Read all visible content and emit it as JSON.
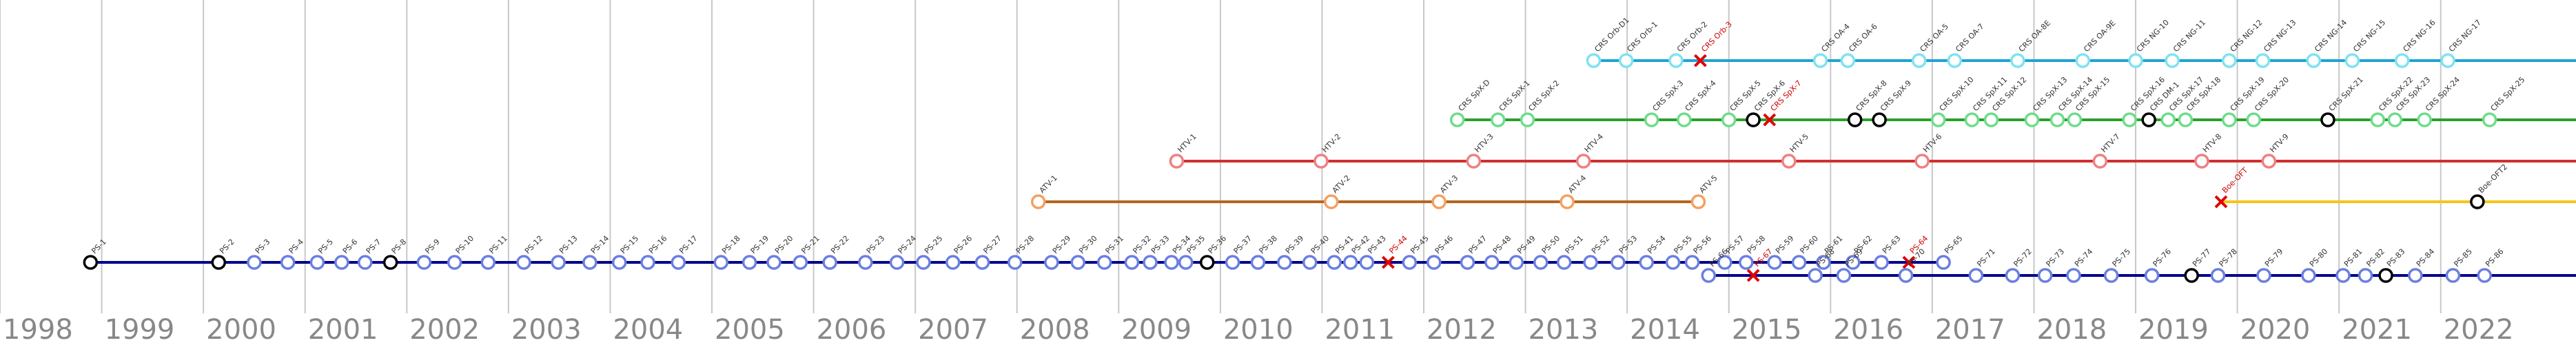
{
  "chart_data": {
    "type": "timeline",
    "xlim": [
      1998,
      2023.33
    ],
    "xticks": [
      1998,
      1999,
      2000,
      2001,
      2002,
      2003,
      2004,
      2005,
      2006,
      2007,
      2008,
      2009,
      2010,
      2011,
      2012,
      2013,
      2014,
      2015,
      2016,
      2017,
      2018,
      2019,
      2020,
      2021,
      2022
    ],
    "grid": true,
    "series": [
      {
        "color": "#1fa3d4",
        "point_color": "#7fe3f0",
        "extend": true,
        "x": [
          2013.67,
          2013.99,
          2014.48,
          2014.72,
          2015.9,
          2016.17,
          2016.87,
          2017.22,
          2017.84,
          2018.48,
          2019.0,
          2019.36,
          2019.92,
          2020.25,
          2020.75,
          2021.13,
          2021.62,
          2022.07
        ],
        "labels": [
          "CRS Orb-D1",
          "CRS Orb-1",
          "CRS Orb-2",
          "CRS Orb-3",
          "CRS OA-4",
          "CRS OA-6",
          "CRS OA-5",
          "CRS OA-7",
          "CRS OA-8E",
          "CRS OA-9E",
          "CRS NG-10",
          "CRS NG-11",
          "CRS NG-12",
          "CRS NG-13",
          "CRS NG-14",
          "CRS NG-15",
          "CRS NG-16",
          "CRS NG-17"
        ],
        "markers": [
          "o",
          "o",
          "o",
          "x",
          "o",
          "o",
          "o",
          "o",
          "o",
          "o",
          "o",
          "o",
          "o",
          "o",
          "o",
          "o",
          "o",
          "o"
        ]
      },
      {
        "color": "#2ca02c",
        "point_color": "#6fdc8c",
        "extend": true,
        "x": [
          2012.33,
          2012.73,
          2013.02,
          2014.24,
          2014.56,
          2015.0,
          2015.24,
          2015.4,
          2016.24,
          2016.48,
          2017.06,
          2017.39,
          2017.58,
          2017.98,
          2018.23,
          2018.4,
          2018.94,
          2019.13,
          2019.32,
          2019.49,
          2019.92,
          2020.16,
          2020.89,
          2021.38,
          2021.55,
          2021.84,
          2022.48
        ],
        "labels": [
          "CRS SpX-D",
          "CRS SpX-1",
          "CRS SpX-2",
          "CRS SpX-3",
          "CRS SpX-4",
          "CRS SpX-5",
          "CRS SpX-6",
          "CRS SpX-7",
          "CRS SpX-8",
          "CRS SpX-9",
          "CRS SpX-10",
          "CRS SpX-11",
          "CRS SpX-12",
          "CRS SpX-13",
          "CRS SpX-14",
          "CRS SpX-15",
          "CRS SpX-16",
          "CRS DM-1",
          "CRS SpX-17",
          "CRS SpX-18",
          "CRS SpX-19",
          "CRS SpX-20",
          "CRS SpX-21",
          "CRS SpX-22",
          "CRS SpX-23",
          "CRS SpX-24",
          "CRS SpX-25"
        ],
        "markers": [
          "o",
          "o",
          "o",
          "o",
          "o",
          "o",
          "b",
          "x",
          "b",
          "b",
          "o",
          "o",
          "o",
          "o",
          "o",
          "o",
          "o",
          "b",
          "o",
          "o",
          "o",
          "o",
          "b",
          "o",
          "o",
          "o",
          "o"
        ]
      },
      {
        "color": "#d03030",
        "point_color": "#f08080",
        "extend": true,
        "x": [
          2009.57,
          2010.99,
          2012.49,
          2013.57,
          2015.59,
          2016.9,
          2018.65,
          2019.65,
          2020.31
        ],
        "labels": [
          "HTV-1",
          "HTV-2",
          "HTV-3",
          "HTV-4",
          "HTV-5",
          "HTV-6",
          "HTV-7",
          "HTV-8",
          "HTV-9"
        ],
        "markers": [
          "o",
          "o",
          "o",
          "o",
          "o",
          "o",
          "o",
          "o",
          "o"
        ]
      },
      {
        "color": "#b5651d",
        "point_color": "#f4a060",
        "extend": false,
        "x": [
          2008.21,
          2011.09,
          2012.15,
          2013.41,
          2014.7
        ],
        "labels": [
          "ATV-1",
          "ATV-2",
          "ATV-3",
          "ATV-4",
          "ATV-5"
        ],
        "markers": [
          "o",
          "o",
          "o",
          "o",
          "o"
        ]
      },
      {
        "color": "#f5c518",
        "point_color": "#f5c518",
        "extend": true,
        "x": [
          2019.84,
          2022.36
        ],
        "labels": [
          "Boe-OFT",
          "Boe-OFT2"
        ],
        "markers": [
          "x",
          "b"
        ]
      },
      {
        "color": "#00008b",
        "point_color": "#6a7fe0",
        "extend": false,
        "x": [
          1998.89,
          2000.15,
          2000.5,
          2000.83,
          2001.12,
          2001.36,
          2001.59,
          2001.84,
          2002.17,
          2002.47,
          2002.8,
          2003.15,
          2003.49,
          2003.8,
          2004.09,
          2004.37,
          2004.67,
          2005.09,
          2005.37,
          2005.61,
          2005.87,
          2006.16,
          2006.51,
          2006.82,
          2007.08,
          2007.37,
          2007.66,
          2007.98,
          2008.34,
          2008.6,
          2008.86,
          2009.13,
          2009.31,
          2009.52,
          2009.66,
          2009.87,
          2010.12,
          2010.37,
          2010.63,
          2010.88,
          2011.12,
          2011.28,
          2011.44,
          2011.65,
          2011.86,
          2012.1,
          2012.43,
          2012.67,
          2012.91,
          2013.15,
          2013.38,
          2013.64,
          2013.91,
          2014.19,
          2014.45,
          2014.64,
          2014.96,
          2015.17,
          2015.45,
          2015.69,
          2015.93,
          2016.22,
          2016.5,
          2016.77,
          2017.11
        ],
        "labels": [
          "PS-1",
          "PS-2",
          "PS-3",
          "PS-4",
          "PS-5",
          "PS-6",
          "PS-7",
          "PS-8",
          "PS-9",
          "PS-10",
          "PS-11",
          "PS-12",
          "PS-13",
          "PS-14",
          "PS-15",
          "PS-16",
          "PS-17",
          "PS-18",
          "PS-19",
          "PS-20",
          "PS-21",
          "PS-22",
          "PS-23",
          "PS-24",
          "PS-25",
          "PS-26",
          "PS-27",
          "PS-28",
          "PS-29",
          "PS-30",
          "PS-31",
          "PS-32",
          "PS-33",
          "PS-34",
          "PS-35",
          "PS-36",
          "PS-37",
          "PS-38",
          "PS-39",
          "PS-40",
          "PS-41",
          "PS-42",
          "PS-43",
          "PS-44",
          "PS-45",
          "PS-46",
          "PS-47",
          "PS-48",
          "PS-49",
          "PS-50",
          "PS-51",
          "PS-52",
          "PS-53",
          "PS-54",
          "PS-55",
          "PS-56",
          "PS-57",
          "PS-58",
          "PS-59",
          "PS-60",
          "PS-61",
          "PS-62",
          "PS-63",
          "PS-64",
          "PS-65"
        ],
        "markers": [
          "b",
          "b",
          "o",
          "o",
          "o",
          "o",
          "o",
          "b",
          "o",
          "o",
          "o",
          "o",
          "o",
          "o",
          "o",
          "o",
          "o",
          "o",
          "o",
          "o",
          "o",
          "o",
          "o",
          "o",
          "o",
          "o",
          "o",
          "o",
          "o",
          "o",
          "o",
          "o",
          "o",
          "o",
          "o",
          "b",
          "o",
          "o",
          "o",
          "o",
          "o",
          "o",
          "o",
          "x",
          "o",
          "o",
          "o",
          "o",
          "o",
          "o",
          "o",
          "o",
          "o",
          "o",
          "o",
          "o",
          "o",
          "o",
          "o",
          "o",
          "o",
          "o",
          "o",
          "x",
          "o"
        ]
      },
      {
        "color": "#00008b",
        "point_color": "#6a7fe0",
        "extend": true,
        "x": [
          2014.8,
          2015.24,
          2015.85,
          2016.13,
          2016.74,
          2017.43,
          2017.79,
          2018.11,
          2018.39,
          2018.76,
          2019.16,
          2019.55,
          2019.81,
          2020.26,
          2020.7,
          2021.04,
          2021.26,
          2021.46,
          2021.75,
          2022.12,
          2022.43
        ],
        "labels": [
          "PS-66",
          "PS-67",
          "PS-68",
          "PS-69",
          "PS-70",
          "PS-71",
          "PS-72",
          "PS-73",
          "PS-74",
          "PS-75",
          "PS-76",
          "PS-77",
          "PS-78",
          "PS-79",
          "PS-80",
          "PS-81",
          "PS-82",
          "PS-83",
          "PS-84",
          "PS-85",
          "PS-86"
        ],
        "markers": [
          "o",
          "x",
          "o",
          "o",
          "o",
          "o",
          "o",
          "o",
          "o",
          "o",
          "o",
          "b",
          "o",
          "o",
          "o",
          "o",
          "o",
          "b",
          "o",
          "o",
          "o"
        ]
      }
    ]
  }
}
